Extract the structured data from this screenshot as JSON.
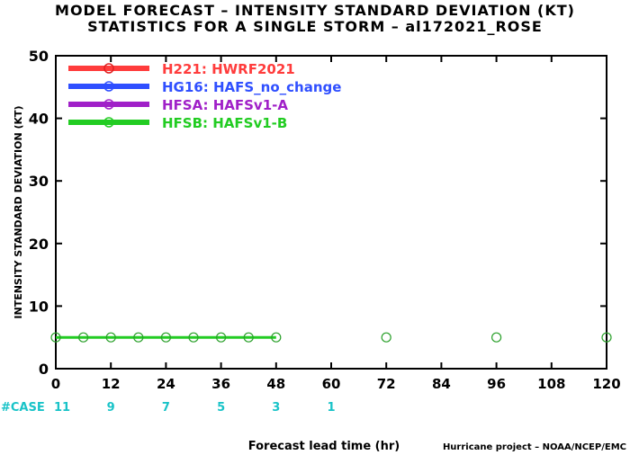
{
  "title_line1": "MODEL FORECAST – INTENSITY STANDARD DEVIATION (KT)",
  "title_line2": "STATISTICS FOR A SINGLE STORM – al172021_ROSE",
  "credit": "Hurricane project – NOAA/NCEP/EMC",
  "chart_data": {
    "type": "line",
    "ylabel": "INTENSITY STANDARD DEVIATION (KT)",
    "xlabel": "Forecast lead time (hr)",
    "xlim": [
      0,
      120
    ],
    "ylim": [
      0,
      50
    ],
    "x_ticks": [
      0,
      12,
      24,
      36,
      48,
      60,
      72,
      84,
      96,
      108,
      120
    ],
    "y_ticks": [
      0,
      10,
      20,
      30,
      40,
      50
    ],
    "grid": false,
    "legend_position": "top-left",
    "legend": [
      {
        "code": "H221:",
        "name": "HWRF2021",
        "color": "#ff3c3c"
      },
      {
        "code": "HG16:",
        "name": "HAFS_no_change",
        "color": "#2f4fff"
      },
      {
        "code": "HFSA:",
        "name": "HAFSv1-A",
        "color": "#a020c8"
      },
      {
        "code": "HFSB:",
        "name": "HAFSv1-B",
        "color": "#22cc22"
      }
    ],
    "series": [
      {
        "name": "HFSB",
        "color": "#22cc22",
        "line_x": [
          0,
          6,
          12,
          18,
          24,
          30,
          36,
          42,
          48
        ],
        "line_y": [
          5,
          5,
          5,
          5,
          5,
          5,
          5,
          5,
          5
        ],
        "points_x": [
          0,
          6,
          12,
          18,
          24,
          30,
          36,
          42,
          48,
          72,
          96,
          120
        ],
        "points_y": [
          5,
          5,
          5,
          5,
          5,
          5,
          5,
          5,
          5,
          5,
          5,
          5
        ]
      }
    ],
    "cases": {
      "label": "#CASE",
      "x": [
        0,
        12,
        24,
        36,
        48,
        60
      ],
      "values": [
        "11",
        "9",
        "7",
        "5",
        "3",
        "1"
      ],
      "color": "#19c3c8"
    }
  }
}
